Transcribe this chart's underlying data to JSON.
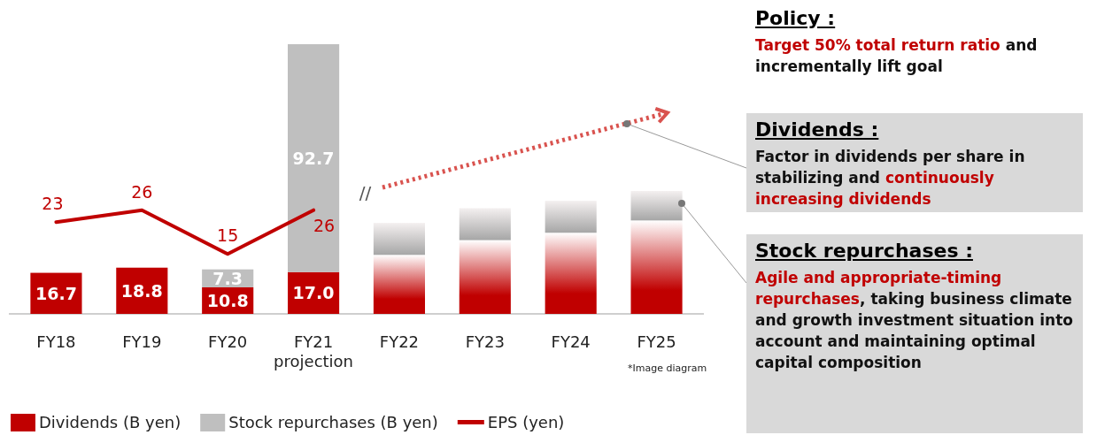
{
  "chart_data": {
    "type": "bar",
    "stacked": true,
    "categories": [
      "FY18",
      "FY19",
      "FY20",
      "FY21 projection",
      "FY22",
      "FY23",
      "FY24",
      "FY25"
    ],
    "series": [
      {
        "name": "Dividends (B yen)",
        "color": "#c00000",
        "values": [
          16.7,
          18.8,
          10.8,
          17.0,
          24,
          30,
          33,
          38
        ],
        "value_labels": [
          "16.7",
          "18.8",
          "10.8",
          "17.0",
          null,
          null,
          null,
          null
        ]
      },
      {
        "name": "Stock repurchases (B yen)",
        "color": "#bfbfbf",
        "values": [
          null,
          null,
          7.3,
          92.7,
          13,
          13,
          13,
          12
        ],
        "value_labels": [
          null,
          null,
          "7.3",
          "92.7",
          null,
          null,
          null,
          null
        ]
      },
      {
        "name": "EPS (yen)",
        "type": "line",
        "axis": "y2",
        "color": "#c00000",
        "values": [
          23,
          26,
          15,
          26,
          null,
          null,
          null,
          null
        ],
        "value_labels": [
          "23",
          "26",
          "15",
          "26",
          null,
          null,
          null,
          null
        ]
      }
    ],
    "legend": "bottom left",
    "annotations": [
      "//",
      "*Image diagram",
      "Policy :",
      "Target 50% total return ratio",
      "and incrementally lift goal",
      "Dividends :",
      "Factor in dividends per share in stabilizing and",
      "continuously increasing dividends",
      "Stock repurchases :",
      "Agile and appropriate-timing repurchases",
      ", taking business climate and growth investment situation into account and maintaining optimal capital composition"
    ]
  }
}
